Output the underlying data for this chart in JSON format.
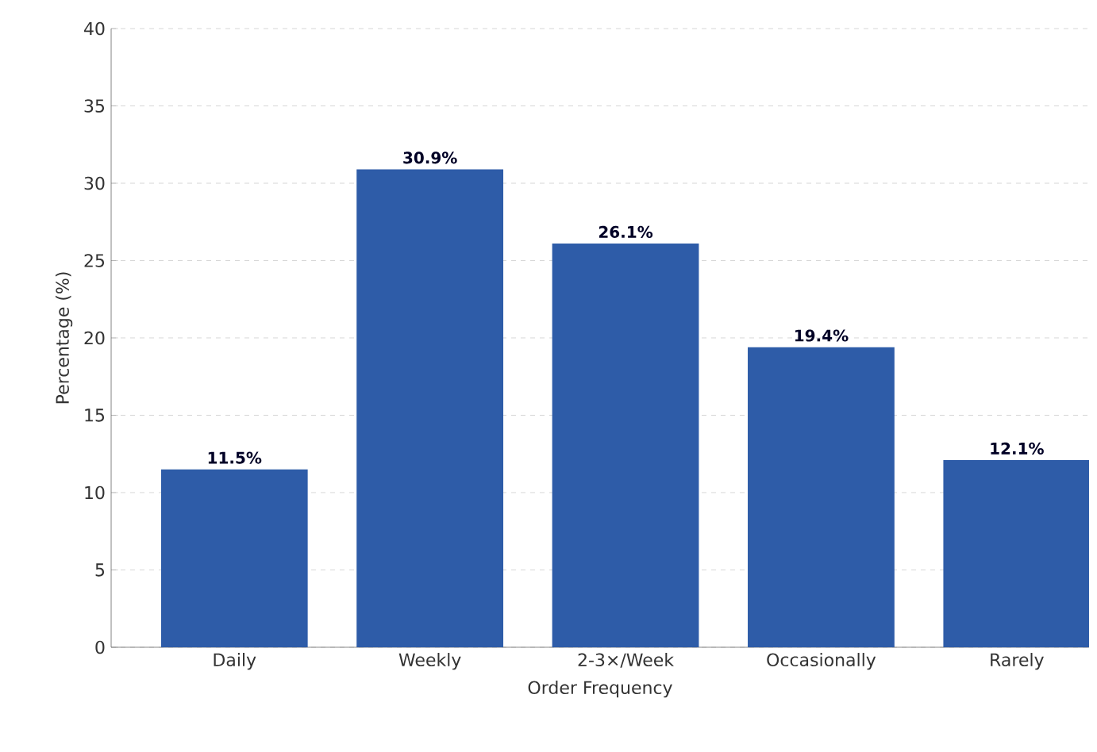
{
  "chart_data": {
    "type": "bar",
    "xlabel": "Order Frequency",
    "ylabel": "Percentage (%)",
    "categories": [
      "Daily",
      "Weekly",
      "2-3×/Week",
      "Occasionally",
      "Rarely"
    ],
    "values": [
      11.5,
      30.9,
      26.1,
      19.4,
      12.1
    ],
    "value_labels": [
      "11.5%",
      "30.9%",
      "26.1%",
      "19.4%",
      "12.1%"
    ],
    "color": "#2e5ca8",
    "ylim": [
      0,
      40
    ],
    "yticks": [
      0,
      5,
      10,
      15,
      20,
      25,
      30,
      35,
      40
    ],
    "grid": "y"
  }
}
